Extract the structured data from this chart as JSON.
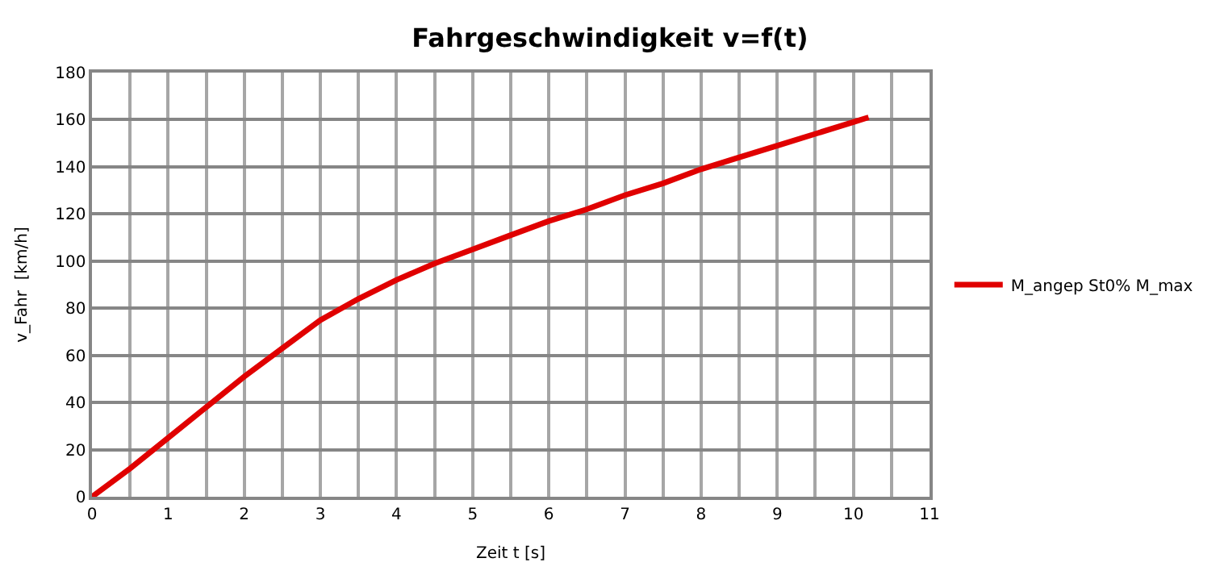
{
  "chart_data": {
    "type": "line",
    "title": "Fahrgeschwindigkeit v=f(t)",
    "xlabel": "Zeit t [s]",
    "ylabel": "v_Fahr  [km/h]",
    "x": [
      0,
      0.5,
      1,
      1.5,
      2,
      2.5,
      3,
      3.5,
      4,
      4.5,
      5,
      5.5,
      6,
      6.5,
      7,
      7.5,
      8,
      8.5,
      9,
      9.5,
      10,
      10.2
    ],
    "series": [
      {
        "name": "M_angep St0% M_max",
        "color": "#e00000",
        "values": [
          0,
          12,
          25,
          38,
          51,
          63,
          75,
          84,
          92,
          99,
          105,
          111,
          117,
          122,
          128,
          133,
          139,
          144,
          149,
          154,
          159,
          161
        ]
      }
    ],
    "xlim": [
      0,
      11
    ],
    "ylim": [
      0,
      180
    ],
    "xticks": [
      0,
      {
        "value": 0.5,
        "label": null
      },
      1,
      {
        "value": 1.5,
        "label": null
      },
      2,
      {
        "value": 2.5,
        "label": null
      },
      3,
      {
        "value": 3.5,
        "label": null
      },
      4,
      {
        "value": 4.5,
        "label": null
      },
      5,
      {
        "value": 5.5,
        "label": null
      },
      6,
      {
        "value": 6.5,
        "label": null
      },
      7,
      {
        "value": 7.5,
        "label": null
      },
      8,
      {
        "value": 8.5,
        "label": null
      },
      9,
      {
        "value": 9.5,
        "label": null
      },
      10,
      {
        "value": 10.5,
        "label": null
      },
      11
    ],
    "yticks": [
      0,
      20,
      40,
      60,
      80,
      100,
      120,
      140,
      160,
      180
    ],
    "grid": true,
    "legend": "right",
    "marker": "none",
    "line_style": "solid"
  }
}
